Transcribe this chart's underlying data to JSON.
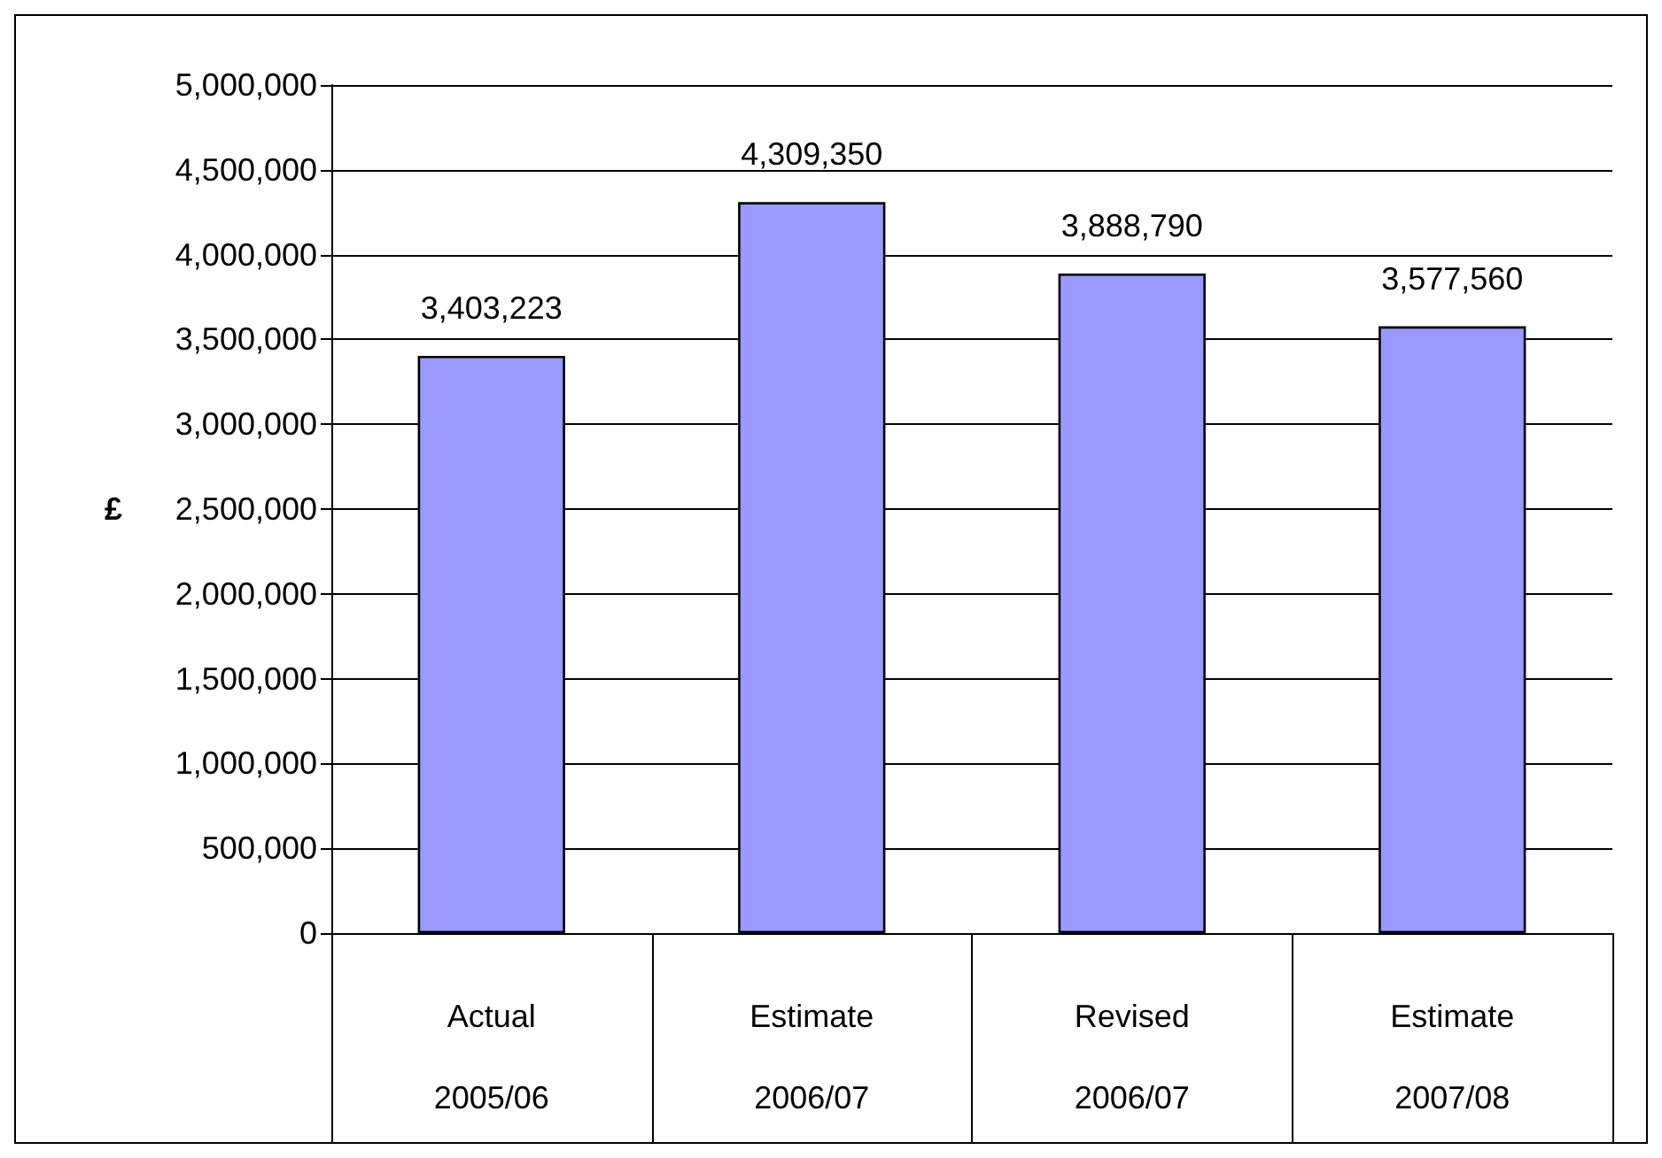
{
  "chart_data": {
    "type": "bar",
    "ylabel": "£",
    "categories": [
      "Actual\n2005/06",
      "Estimate\n2006/07",
      "Revised\n2006/07",
      "Estimate\n2007/08"
    ],
    "values": [
      3403223,
      4309350,
      3888790,
      3577560
    ],
    "value_labels": [
      "3,403,223",
      "4,309,350",
      "3,888,790",
      "3,577,560"
    ],
    "color": "#9999ff",
    "ylim": [
      0,
      5000000
    ],
    "yticks": [
      {
        "value": 0,
        "label": "0"
      },
      {
        "value": 500000,
        "label": "500,000"
      },
      {
        "value": 1000000,
        "label": "1,000,000"
      },
      {
        "value": 1500000,
        "label": "1,500,000"
      },
      {
        "value": 2000000,
        "label": "2,000,000"
      },
      {
        "value": 2500000,
        "label": "2,500,000"
      },
      {
        "value": 3000000,
        "label": "3,000,000"
      },
      {
        "value": 3500000,
        "label": "3,500,000"
      },
      {
        "value": 4000000,
        "label": "4,000,000"
      },
      {
        "value": 4500000,
        "label": "4,500,000"
      },
      {
        "value": 5000000,
        "label": "5,000,000"
      }
    ],
    "grid": "y"
  }
}
